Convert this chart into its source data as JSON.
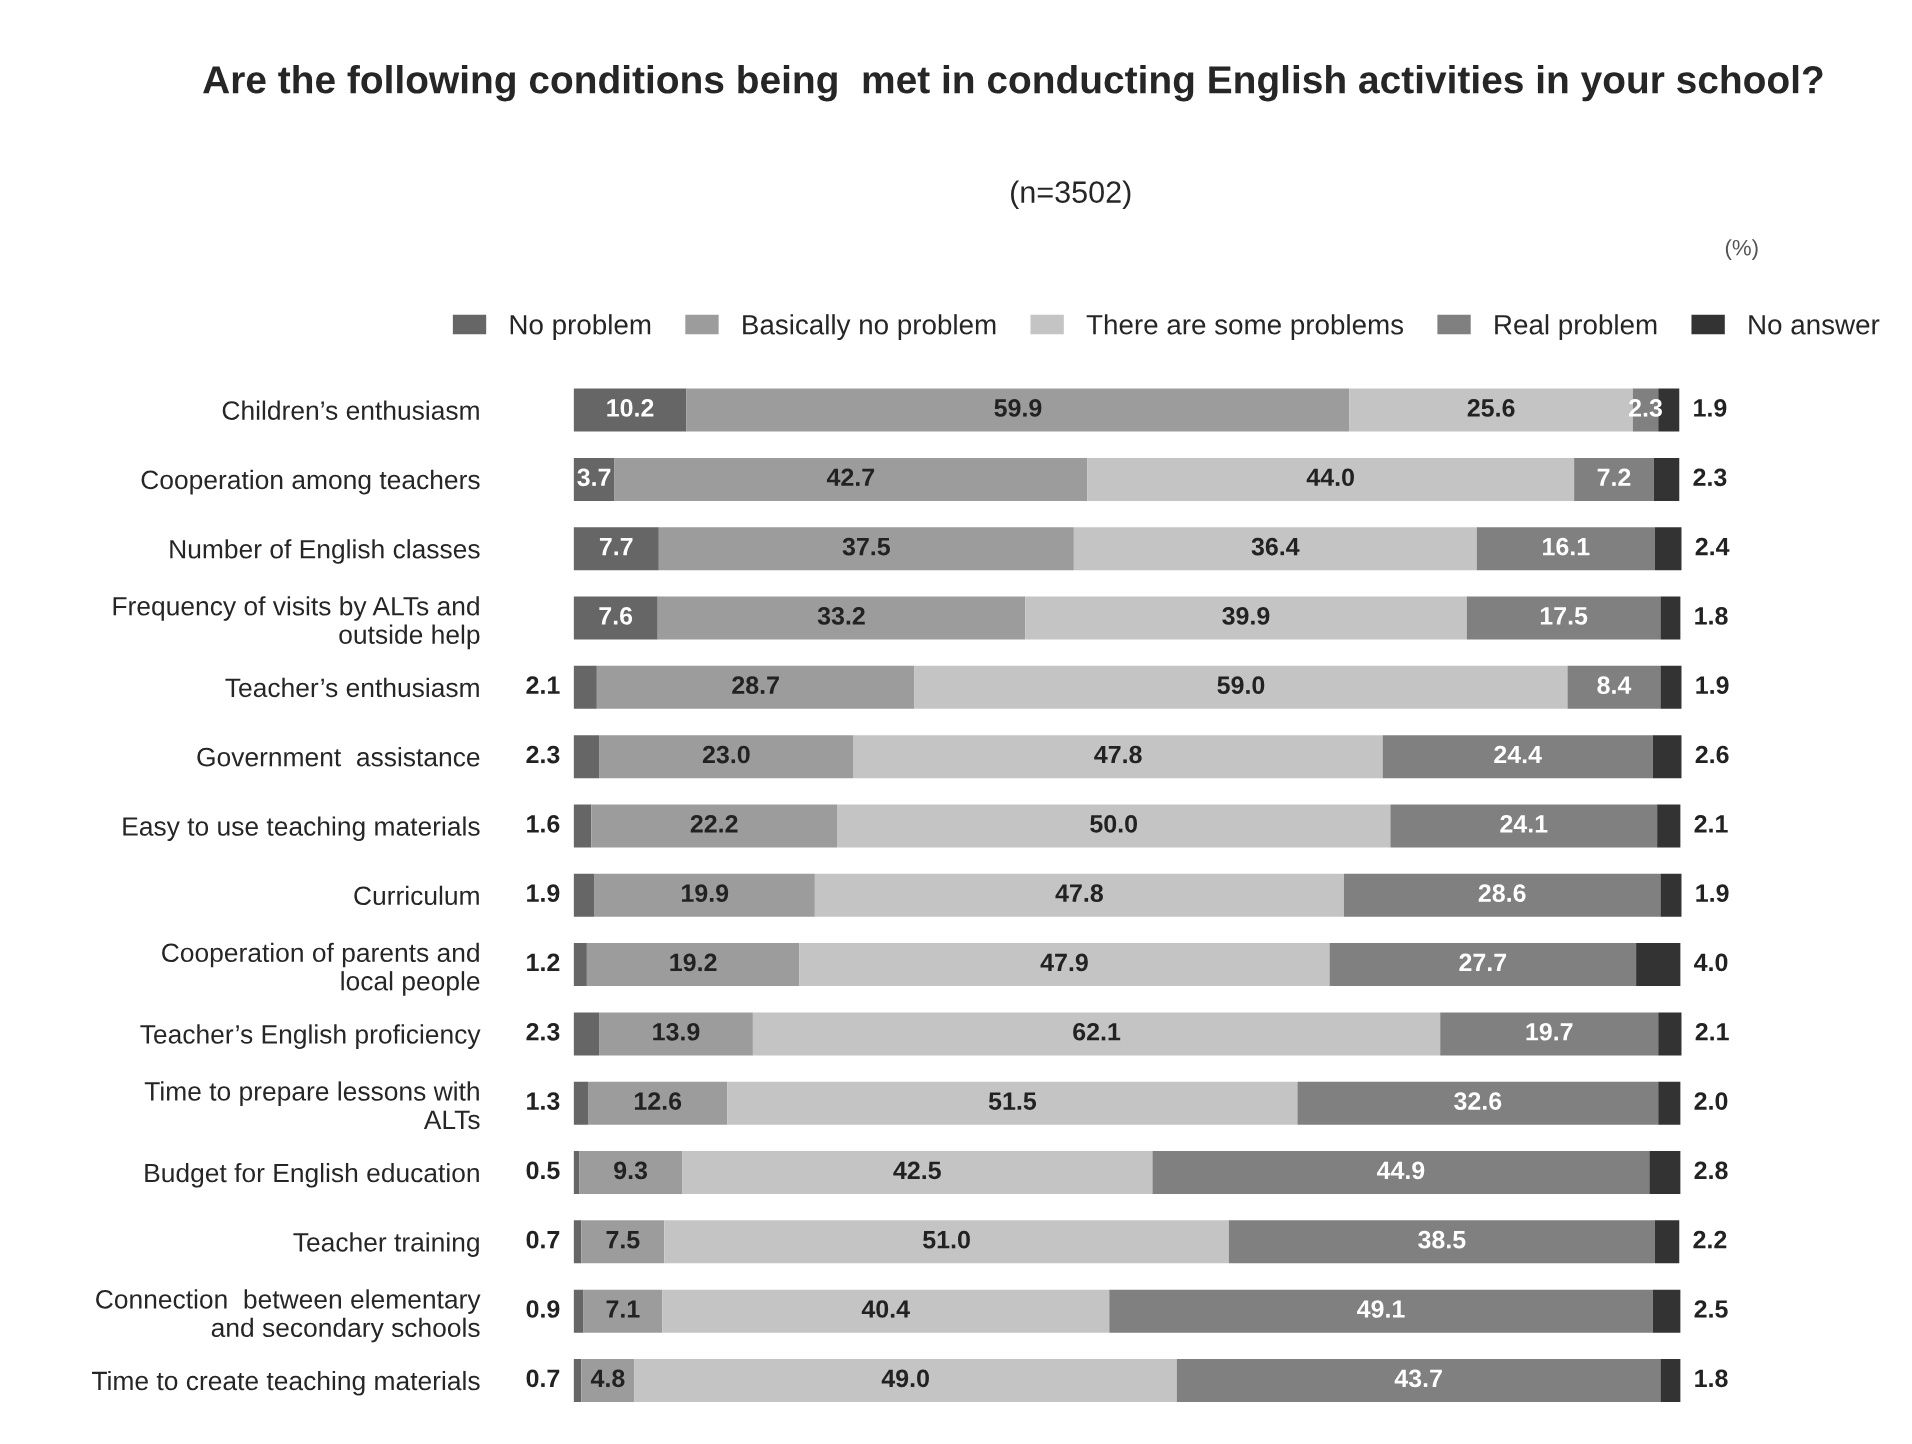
{
  "chart_data": {
    "type": "bar",
    "orientation": "horizontal",
    "stacked": true,
    "legend": "top",
    "grid": false,
    "tick_labels": "y",
    "title": "Are the following conditions being  met in conducting English activities in your school?",
    "annotations": [
      "(n=3502)",
      "(%)"
    ],
    "categories": [
      "Children’s enthusiasm",
      "Cooperation among teachers",
      "Number of English classes",
      "Frequency of visits by ALTs and\noutside help",
      "Teacher’s enthusiasm",
      "Government  assistance",
      "Easy to use teaching materials",
      "Curriculum",
      "Cooperation of parents and\nlocal people",
      "Teacher’s English proficiency",
      "Time to prepare lessons with\nALTs",
      "Budget for English education",
      "Teacher training",
      "Connection  between elementary\nand secondary schools",
      "Time to create teaching materials"
    ],
    "series": [
      {
        "name": "No problem",
        "color": "#666666",
        "values": [
          10.2,
          3.7,
          7.7,
          7.6,
          2.1,
          2.3,
          1.6,
          1.9,
          1.2,
          2.3,
          1.3,
          0.5,
          0.7,
          0.9,
          0.7
        ],
        "value_labels": [
          "10.2",
          "3.7",
          "7.7",
          "7.6",
          "2.1",
          "2.3",
          "1.6",
          "1.9",
          "1.2",
          "2.3",
          "1.3",
          "0.5",
          "0.7",
          "0.9",
          "0.7"
        ]
      },
      {
        "name": "Basically no problem",
        "color": "#9c9c9c",
        "values": [
          59.9,
          42.7,
          37.5,
          33.2,
          28.7,
          23.0,
          22.2,
          19.9,
          19.2,
          13.9,
          12.6,
          9.3,
          7.5,
          7.1,
          4.8
        ],
        "value_labels": [
          "59.9",
          "42.7",
          "37.5",
          "33.2",
          "28.7",
          "23.0",
          "22.2",
          "19.9",
          "19.2",
          "13.9",
          "12.6",
          "9.3",
          "7.5",
          "7.1",
          "4.8"
        ]
      },
      {
        "name": "There are some problems",
        "color": "#c4c4c4",
        "values": [
          25.6,
          44.0,
          36.4,
          39.9,
          59.0,
          47.8,
          50.0,
          47.8,
          47.9,
          62.1,
          51.5,
          42.5,
          51.0,
          40.4,
          49.0
        ],
        "value_labels": [
          "25.6",
          "44.0",
          "36.4",
          "39.9",
          "59.0",
          "47.8",
          "50.0",
          "47.8",
          "47.9",
          "62.1",
          "51.5",
          "42.5",
          "51.0",
          "40.4",
          "49.0"
        ]
      },
      {
        "name": "Real problem",
        "color": "#808080",
        "values": [
          2.3,
          7.2,
          16.1,
          17.5,
          8.4,
          24.4,
          24.1,
          28.6,
          27.7,
          19.7,
          32.6,
          44.9,
          38.5,
          49.1,
          43.7
        ],
        "value_labels": [
          "2.3",
          "7.2",
          "16.1",
          "17.5",
          "8.4",
          "24.4",
          "24.1",
          "28.6",
          "27.7",
          "19.7",
          "32.6",
          "44.9",
          "38.5",
          "49.1",
          "43.7"
        ]
      },
      {
        "name": "No answer",
        "color": "#333333",
        "values": [
          1.9,
          2.3,
          2.4,
          1.8,
          1.9,
          2.6,
          2.1,
          1.9,
          4.0,
          2.1,
          2.0,
          2.8,
          2.2,
          2.5,
          1.8
        ],
        "value_labels": [
          "1.9",
          "2.3",
          "2.4",
          "1.8",
          "1.9",
          "2.6",
          "2.1",
          "1.9",
          "4.0",
          "2.1",
          "2.0",
          "2.8",
          "2.2",
          "2.5",
          "1.8"
        ]
      }
    ]
  }
}
